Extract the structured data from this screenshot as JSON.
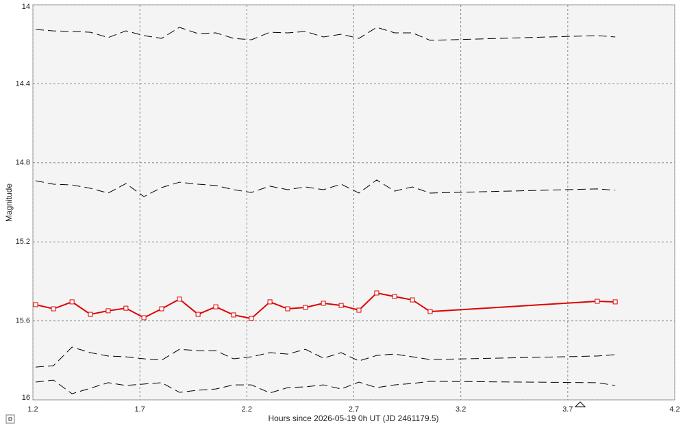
{
  "chart_data": {
    "type": "line",
    "x_label": "Hours since 2026-05-19 0h UT (JD 2461179.5)",
    "y_label": "Magnitude",
    "x": [
      1.213,
      1.296,
      1.383,
      1.469,
      1.552,
      1.635,
      1.719,
      1.802,
      1.885,
      1.972,
      2.055,
      2.138,
      2.221,
      2.308,
      2.391,
      2.474,
      2.558,
      2.641,
      2.724,
      2.807,
      2.891,
      2.974,
      3.057,
      3.838,
      3.922
    ],
    "series": [
      {
        "color": "#000000",
        "dashed": true,
        "marker": false,
        "values": [
          14.125,
          14.132,
          14.135,
          14.139,
          14.166,
          14.132,
          14.156,
          14.17,
          14.114,
          14.146,
          14.142,
          14.17,
          14.177,
          14.139,
          14.142,
          14.135,
          14.163,
          14.149,
          14.17,
          14.114,
          14.142,
          14.142,
          14.18,
          14.156,
          14.163
        ]
      },
      {
        "color": "#000000",
        "dashed": true,
        "marker": false,
        "values": [
          14.891,
          14.908,
          14.912,
          14.929,
          14.953,
          14.905,
          14.971,
          14.925,
          14.898,
          14.908,
          14.915,
          14.936,
          14.95,
          14.918,
          14.936,
          14.922,
          14.936,
          14.908,
          14.953,
          14.887,
          14.943,
          14.922,
          14.953,
          14.932,
          14.939
        ]
      },
      {
        "color": "#dd0000",
        "dashed": false,
        "marker": true,
        "values": [
          15.518,
          15.539,
          15.504,
          15.567,
          15.549,
          15.536,
          15.584,
          15.539,
          15.49,
          15.567,
          15.529,
          15.57,
          15.588,
          15.504,
          15.539,
          15.532,
          15.511,
          15.522,
          15.546,
          15.459,
          15.477,
          15.494,
          15.553,
          15.501,
          15.504
        ]
      },
      {
        "color": "#000000",
        "dashed": true,
        "marker": false,
        "values": [
          15.834,
          15.827,
          15.733,
          15.761,
          15.778,
          15.782,
          15.792,
          15.799,
          15.744,
          15.751,
          15.751,
          15.792,
          15.782,
          15.761,
          15.768,
          15.744,
          15.789,
          15.761,
          15.803,
          15.775,
          15.768,
          15.782,
          15.796,
          15.778,
          15.771
        ]
      },
      {
        "color": "#000000",
        "dashed": true,
        "marker": false,
        "values": [
          15.91,
          15.9,
          15.969,
          15.941,
          15.913,
          15.927,
          15.92,
          15.913,
          15.962,
          15.951,
          15.945,
          15.924,
          15.924,
          15.965,
          15.938,
          15.934,
          15.924,
          15.945,
          15.91,
          15.938,
          15.924,
          15.917,
          15.906,
          15.913,
          15.927
        ]
      }
    ],
    "xlim": [
      1.2,
      4.2
    ],
    "xticks": [
      1.2,
      1.7,
      2.2,
      2.7,
      3.2,
      3.7,
      4.2
    ],
    "ylim": [
      14,
      16
    ],
    "yticks": [
      14,
      14.4,
      14.8,
      15.2,
      15.6,
      16
    ],
    "y_inverted": true,
    "grid": true
  }
}
